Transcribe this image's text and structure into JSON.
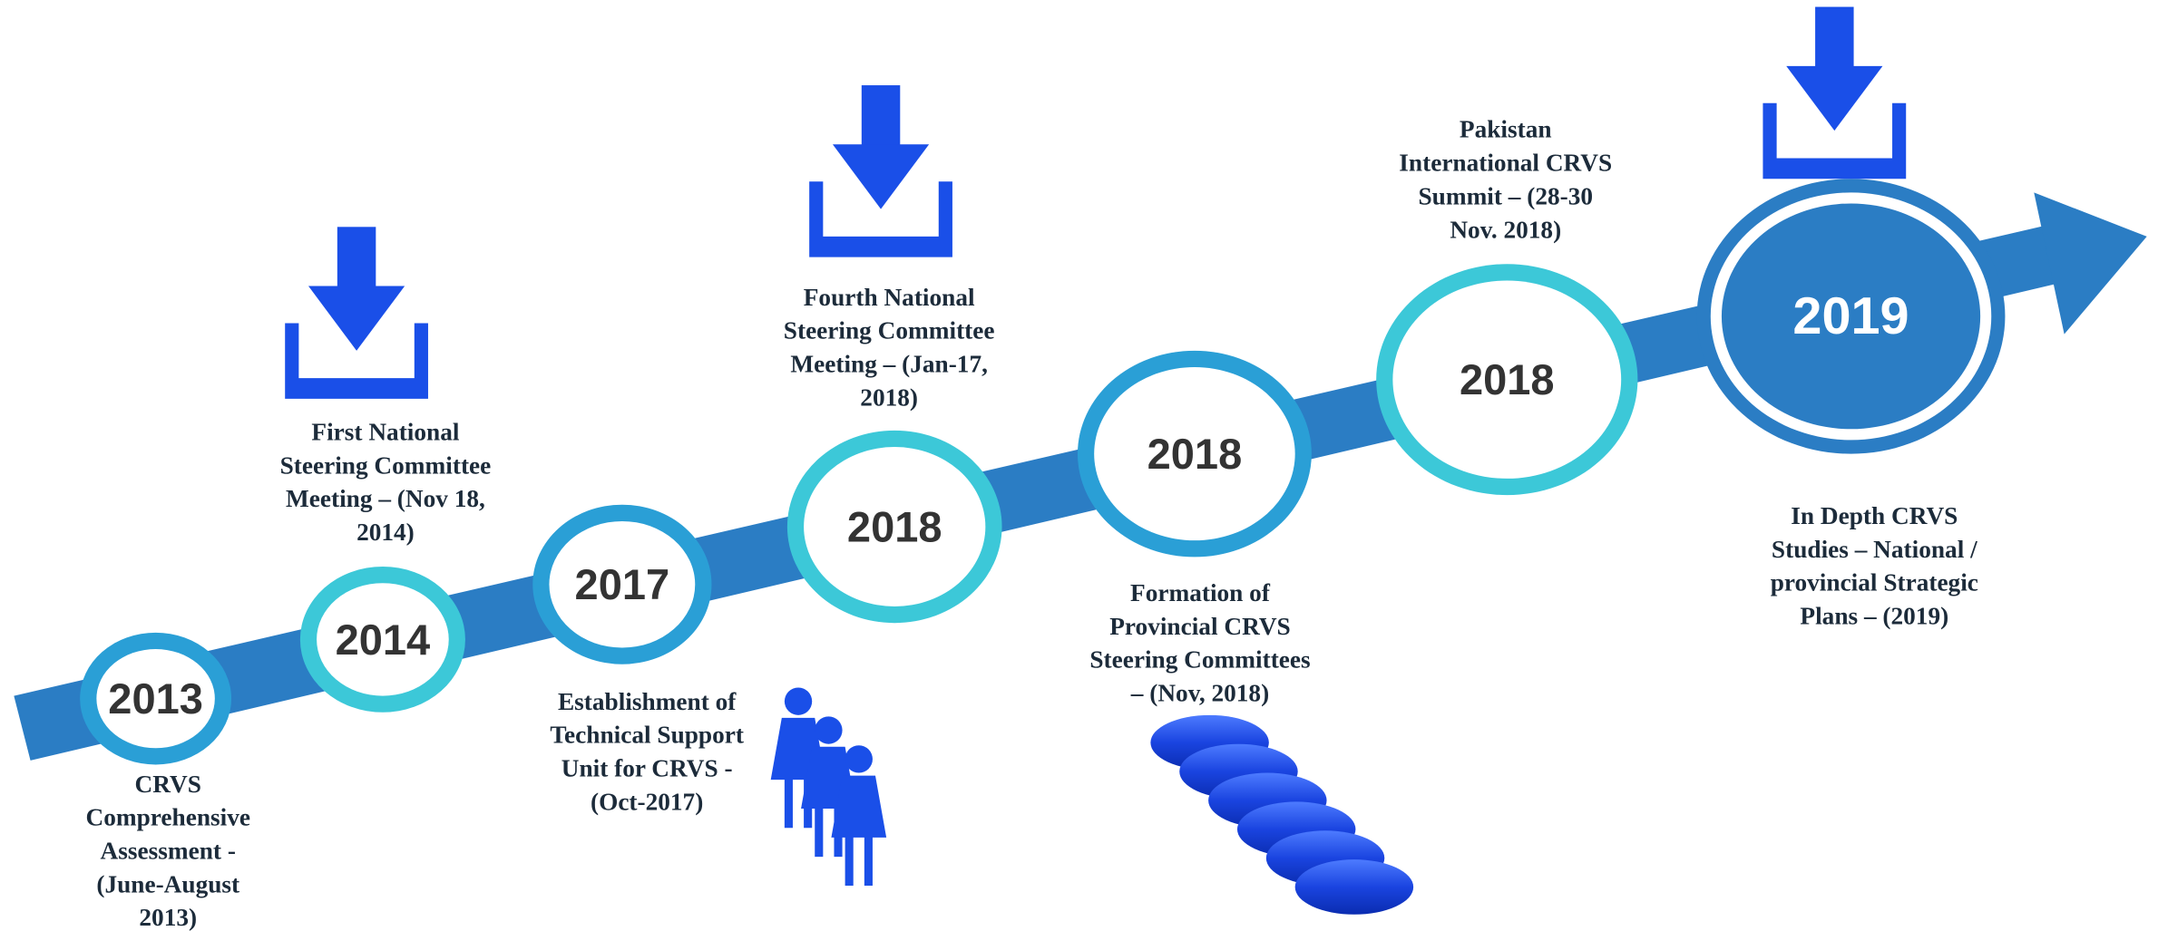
{
  "milestones": [
    {
      "year": "2013",
      "label": [
        "CRVS",
        "Comprehensive",
        "Assessment -",
        "(June-August",
        "2013)"
      ]
    },
    {
      "year": "2014",
      "label": [
        "First National",
        "Steering Committee",
        "Meeting – (Nov 18,",
        "2014)"
      ]
    },
    {
      "year": "2017",
      "label": [
        "Establishment of",
        "Technical Support",
        "Unit for CRVS -",
        "(Oct-2017)"
      ]
    },
    {
      "year": "2018",
      "label": [
        "Fourth National",
        "Steering Committee",
        "Meeting – (Jan-17,",
        "2018)"
      ]
    },
    {
      "year": "2018",
      "label": [
        "Formation of",
        "Provincial CRVS",
        "Steering Committees",
        "– (Nov, 2018)"
      ]
    },
    {
      "year": "2018",
      "label": [
        "Pakistan",
        "International CRVS",
        "Summit – (28-30",
        "Nov. 2018)"
      ]
    },
    {
      "year": "2019",
      "label": [
        "In Depth CRVS",
        "Studies – National /",
        "provincial Strategic",
        "Plans – (2019)"
      ]
    }
  ]
}
